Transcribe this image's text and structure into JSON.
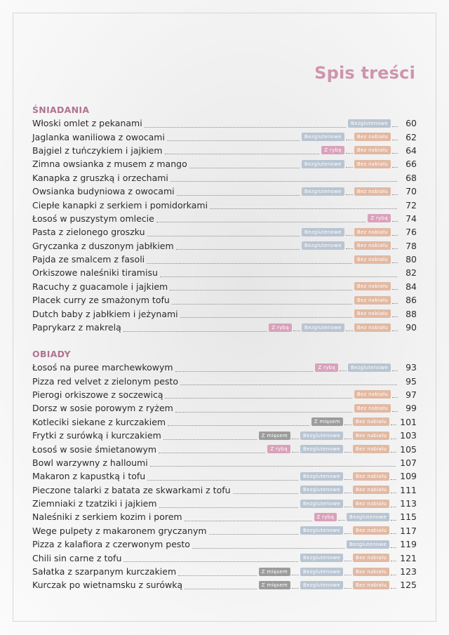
{
  "title": "Spis treści",
  "tag_colors": {
    "Bezglutenowe": "#b9c5d2",
    "Bez nabiału": "#e2b9a3",
    "Z rybą": "#d9a2bb",
    "Z mięsem": "#9c9c9c"
  },
  "sections": [
    {
      "heading": "ŚNIADANIA",
      "items": [
        {
          "name": "Włoski omlet z pekanami",
          "tags": [
            "Bezglutenowe"
          ],
          "page": "60"
        },
        {
          "name": "Jaglanka waniliowa z owocami",
          "tags": [
            "Bezglutenowe",
            "Bez nabiału"
          ],
          "page": "62"
        },
        {
          "name": "Bajgiel z tuńczykiem i jajkiem",
          "tags": [
            "Z rybą",
            "Bez nabiału"
          ],
          "page": "64"
        },
        {
          "name": "Zimna owsianka z musem z mango",
          "tags": [
            "Bezglutenowe",
            "Bez nabiału"
          ],
          "page": "66"
        },
        {
          "name": "Kanapka z gruszką i orzechami",
          "tags": [],
          "page": "68"
        },
        {
          "name": "Owsianka budyniowa z owocami",
          "tags": [
            "Bezglutenowe",
            "Bez nabiału"
          ],
          "page": "70"
        },
        {
          "name": "Ciepłe kanapki z serkiem i pomidorkami",
          "tags": [],
          "page": "72"
        },
        {
          "name": "Łosoś w puszystym omlecie",
          "tags": [
            "Z rybą"
          ],
          "page": "74"
        },
        {
          "name": "Pasta z zielonego groszku",
          "tags": [
            "Bezglutenowe",
            "Bez nabiału"
          ],
          "page": "76"
        },
        {
          "name": "Gryczanka z duszonym jabłkiem",
          "tags": [
            "Bezglutenowe",
            "Bez nabiału"
          ],
          "page": "78"
        },
        {
          "name": "Pajda ze smalcem z fasoli",
          "tags": [
            "Bez nabiału"
          ],
          "page": "80"
        },
        {
          "name": "Orkiszowe naleśniki tiramisu",
          "tags": [],
          "page": "82"
        },
        {
          "name": "Racuchy z guacamole i jajkiem",
          "tags": [
            "Bez nabiału"
          ],
          "page": "84"
        },
        {
          "name": "Placek curry ze smażonym tofu",
          "tags": [
            "Bez nabiału"
          ],
          "page": "86"
        },
        {
          "name": "Dutch baby z jabłkiem i jeżynami",
          "tags": [
            "Bez nabiału"
          ],
          "page": "88"
        },
        {
          "name": "Paprykarz z makrelą",
          "tags": [
            "Z rybą",
            "Bezglutenowe",
            "Bez nabiału"
          ],
          "page": "90"
        }
      ]
    },
    {
      "heading": "OBIADY",
      "items": [
        {
          "name": "Łosoś na puree marchewkowym",
          "tags": [
            "Z rybą",
            "Bezglutenowe"
          ],
          "page": "93"
        },
        {
          "name": "Pizza red velvet z zielonym pesto",
          "tags": [],
          "page": "95"
        },
        {
          "name": "Pierogi orkiszowe z soczewicą",
          "tags": [
            "Bez nabiału"
          ],
          "page": "97"
        },
        {
          "name": "Dorsz w sosie porowym z ryżem",
          "tags": [
            "Bez nabiału"
          ],
          "page": "99"
        },
        {
          "name": "Kotleciki siekane z kurczakiem",
          "tags": [
            "Z mięsem",
            "Bez nabiału"
          ],
          "page": "101"
        },
        {
          "name": "Frytki z surówką i kurczakiem",
          "tags": [
            "Z mięsem",
            "Bezglutenowe",
            "Bez nabiału"
          ],
          "page": "103"
        },
        {
          "name": "Łosoś w sosie śmietanowym",
          "tags": [
            "Z rybą",
            "Bezglutenowe",
            "Bez nabiału"
          ],
          "page": "105"
        },
        {
          "name": "Bowl warzywny z halloumi",
          "tags": [],
          "page": "107"
        },
        {
          "name": "Makaron z kapustką i tofu",
          "tags": [
            "Bezglutenowe",
            "Bez nabiału"
          ],
          "page": "109"
        },
        {
          "name": "Pieczone talarki z batata ze skwarkami z tofu",
          "tags": [
            "Bezglutenowe",
            "Bez nabiału"
          ],
          "page": "111"
        },
        {
          "name": "Ziemniaki z tzatziki i jajkiem",
          "tags": [
            "Bezglutenowe",
            "Bez nabiału"
          ],
          "page": "113"
        },
        {
          "name": "Naleśniki z serkiem kozim i porem",
          "tags": [
            "Z rybą",
            "Bezglutenowe"
          ],
          "page": "115"
        },
        {
          "name": "Wege pulpety z makaronem gryczanym",
          "tags": [
            "Bezglutenowe",
            "Bez nabiału"
          ],
          "page": "117"
        },
        {
          "name": "Pizza z kalafiora z czerwonym pesto",
          "tags": [
            "Bezglutenowe"
          ],
          "page": "119"
        },
        {
          "name": "Chili sin carne z tofu",
          "tags": [
            "Bezglutenowe",
            "Bez nabiału"
          ],
          "page": "121"
        },
        {
          "name": "Sałatka z szarpanym kurczakiem",
          "tags": [
            "Z mięsem",
            "Bezglutenowe",
            "Bez nabiału"
          ],
          "page": "123"
        },
        {
          "name": "Kurczak po wietnamsku z surówką",
          "tags": [
            "Z mięsem",
            "Bezglutenowe",
            "Bez nabiału"
          ],
          "page": "125"
        }
      ]
    }
  ]
}
